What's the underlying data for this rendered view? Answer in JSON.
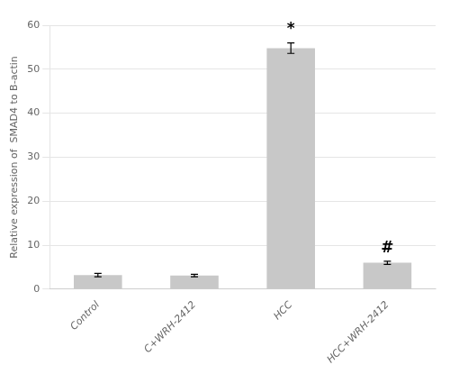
{
  "chart_data": {
    "type": "bar",
    "categories": [
      "Control",
      "C+WRH-2412",
      "HCC",
      "HCC+WRH-2412"
    ],
    "values": [
      3.2,
      3.1,
      54.8,
      6.0
    ],
    "errors": [
      0.4,
      0.3,
      1.2,
      0.35
    ],
    "color": "#c8c8c8",
    "ylabel": "Relative expression of  SMAD4 to B-actin",
    "ylim": [
      0,
      60
    ],
    "yticks": [
      0,
      10,
      20,
      30,
      40,
      50,
      60
    ],
    "grid": true,
    "annotations": [
      {
        "text": "*",
        "category": "HCC"
      },
      {
        "text": "#",
        "category": "HCC+WRH-2412"
      }
    ]
  }
}
